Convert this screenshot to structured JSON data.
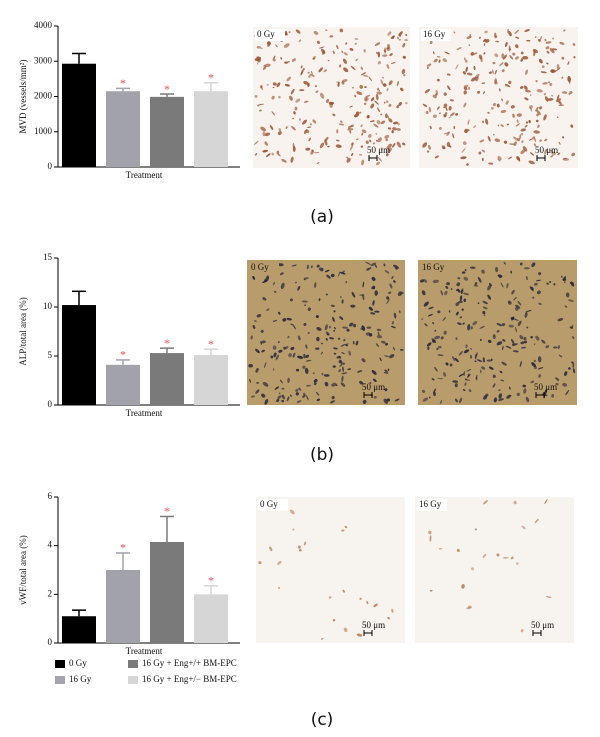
{
  "chart_data": [
    {
      "type": "bar",
      "ylabel": "MVD (vessels/mm²)",
      "xlabel": "Treatment",
      "categories": [
        null
      ],
      "ylim": [
        0,
        4000
      ],
      "yticks": [
        0,
        1000,
        2000,
        3000,
        4000
      ],
      "series": [
        {
          "color": "#000000",
          "values": [
            2930
          ],
          "errors": [
            290
          ]
        },
        {
          "color": "#a2a2aa",
          "values": [
            2150
          ],
          "errors": [
            80
          ],
          "annotation": "*"
        },
        {
          "color": "#7a7a7a",
          "values": [
            1990
          ],
          "errors": [
            80
          ],
          "annotation": "*"
        },
        {
          "color": "#d6d6d6",
          "values": [
            2150
          ],
          "errors": [
            240
          ],
          "annotation": "*"
        }
      ]
    },
    {
      "type": "bar",
      "ylabel": "ALP/total area (%)",
      "xlabel": "Treatment",
      "categories": [
        null
      ],
      "ylim": [
        0,
        15
      ],
      "yticks": [
        0,
        5,
        10,
        15
      ],
      "series": [
        {
          "color": "#000000",
          "values": [
            10.2
          ],
          "errors": [
            1.4
          ]
        },
        {
          "color": "#a2a2aa",
          "values": [
            4.1
          ],
          "errors": [
            0.5
          ],
          "annotation": "*"
        },
        {
          "color": "#7a7a7a",
          "values": [
            5.3
          ],
          "errors": [
            0.5
          ],
          "annotation": "*"
        },
        {
          "color": "#d6d6d6",
          "values": [
            5.1
          ],
          "errors": [
            0.6
          ],
          "annotation": "*"
        }
      ]
    },
    {
      "type": "bar",
      "ylabel": "vWF/total area (%)",
      "xlabel": "Treatment",
      "categories": [
        null
      ],
      "ylim": [
        0,
        6
      ],
      "yticks": [
        0,
        2,
        4,
        6
      ],
      "series": [
        {
          "name": "0 Gy",
          "color": "#000000",
          "values": [
            1.1
          ],
          "errors": [
            0.25
          ]
        },
        {
          "name": "16 Gy",
          "color": "#a2a2aa",
          "values": [
            3.0
          ],
          "errors": [
            0.7
          ],
          "annotation": "*"
        },
        {
          "name": "16 Gy + Eng+/+ BM-EPC",
          "color": "#7a7a7a",
          "values": [
            4.15
          ],
          "errors": [
            1.05
          ],
          "annotation": "*"
        },
        {
          "name": "16 Gy + Eng+/− BM-EPC",
          "color": "#d6d6d6",
          "values": [
            2.0
          ],
          "errors": [
            0.35
          ],
          "annotation": "*"
        }
      ]
    }
  ],
  "panels": [
    {
      "caption": "(a)",
      "images": [
        {
          "label": "0 Gy",
          "scale_bar": "50 μm"
        },
        {
          "label": "16 Gy",
          "scale_bar": "50 μm"
        }
      ]
    },
    {
      "caption": "(b)",
      "images": [
        {
          "label": "0 Gy",
          "scale_bar": "50 μm"
        },
        {
          "label": "16 Gy",
          "scale_bar": "50 μm"
        }
      ]
    },
    {
      "caption": "(c)",
      "images": [
        {
          "label": "0 Gy",
          "scale_bar": "50 μm"
        },
        {
          "label": "16 Gy",
          "scale_bar": "50 μm"
        }
      ]
    }
  ]
}
